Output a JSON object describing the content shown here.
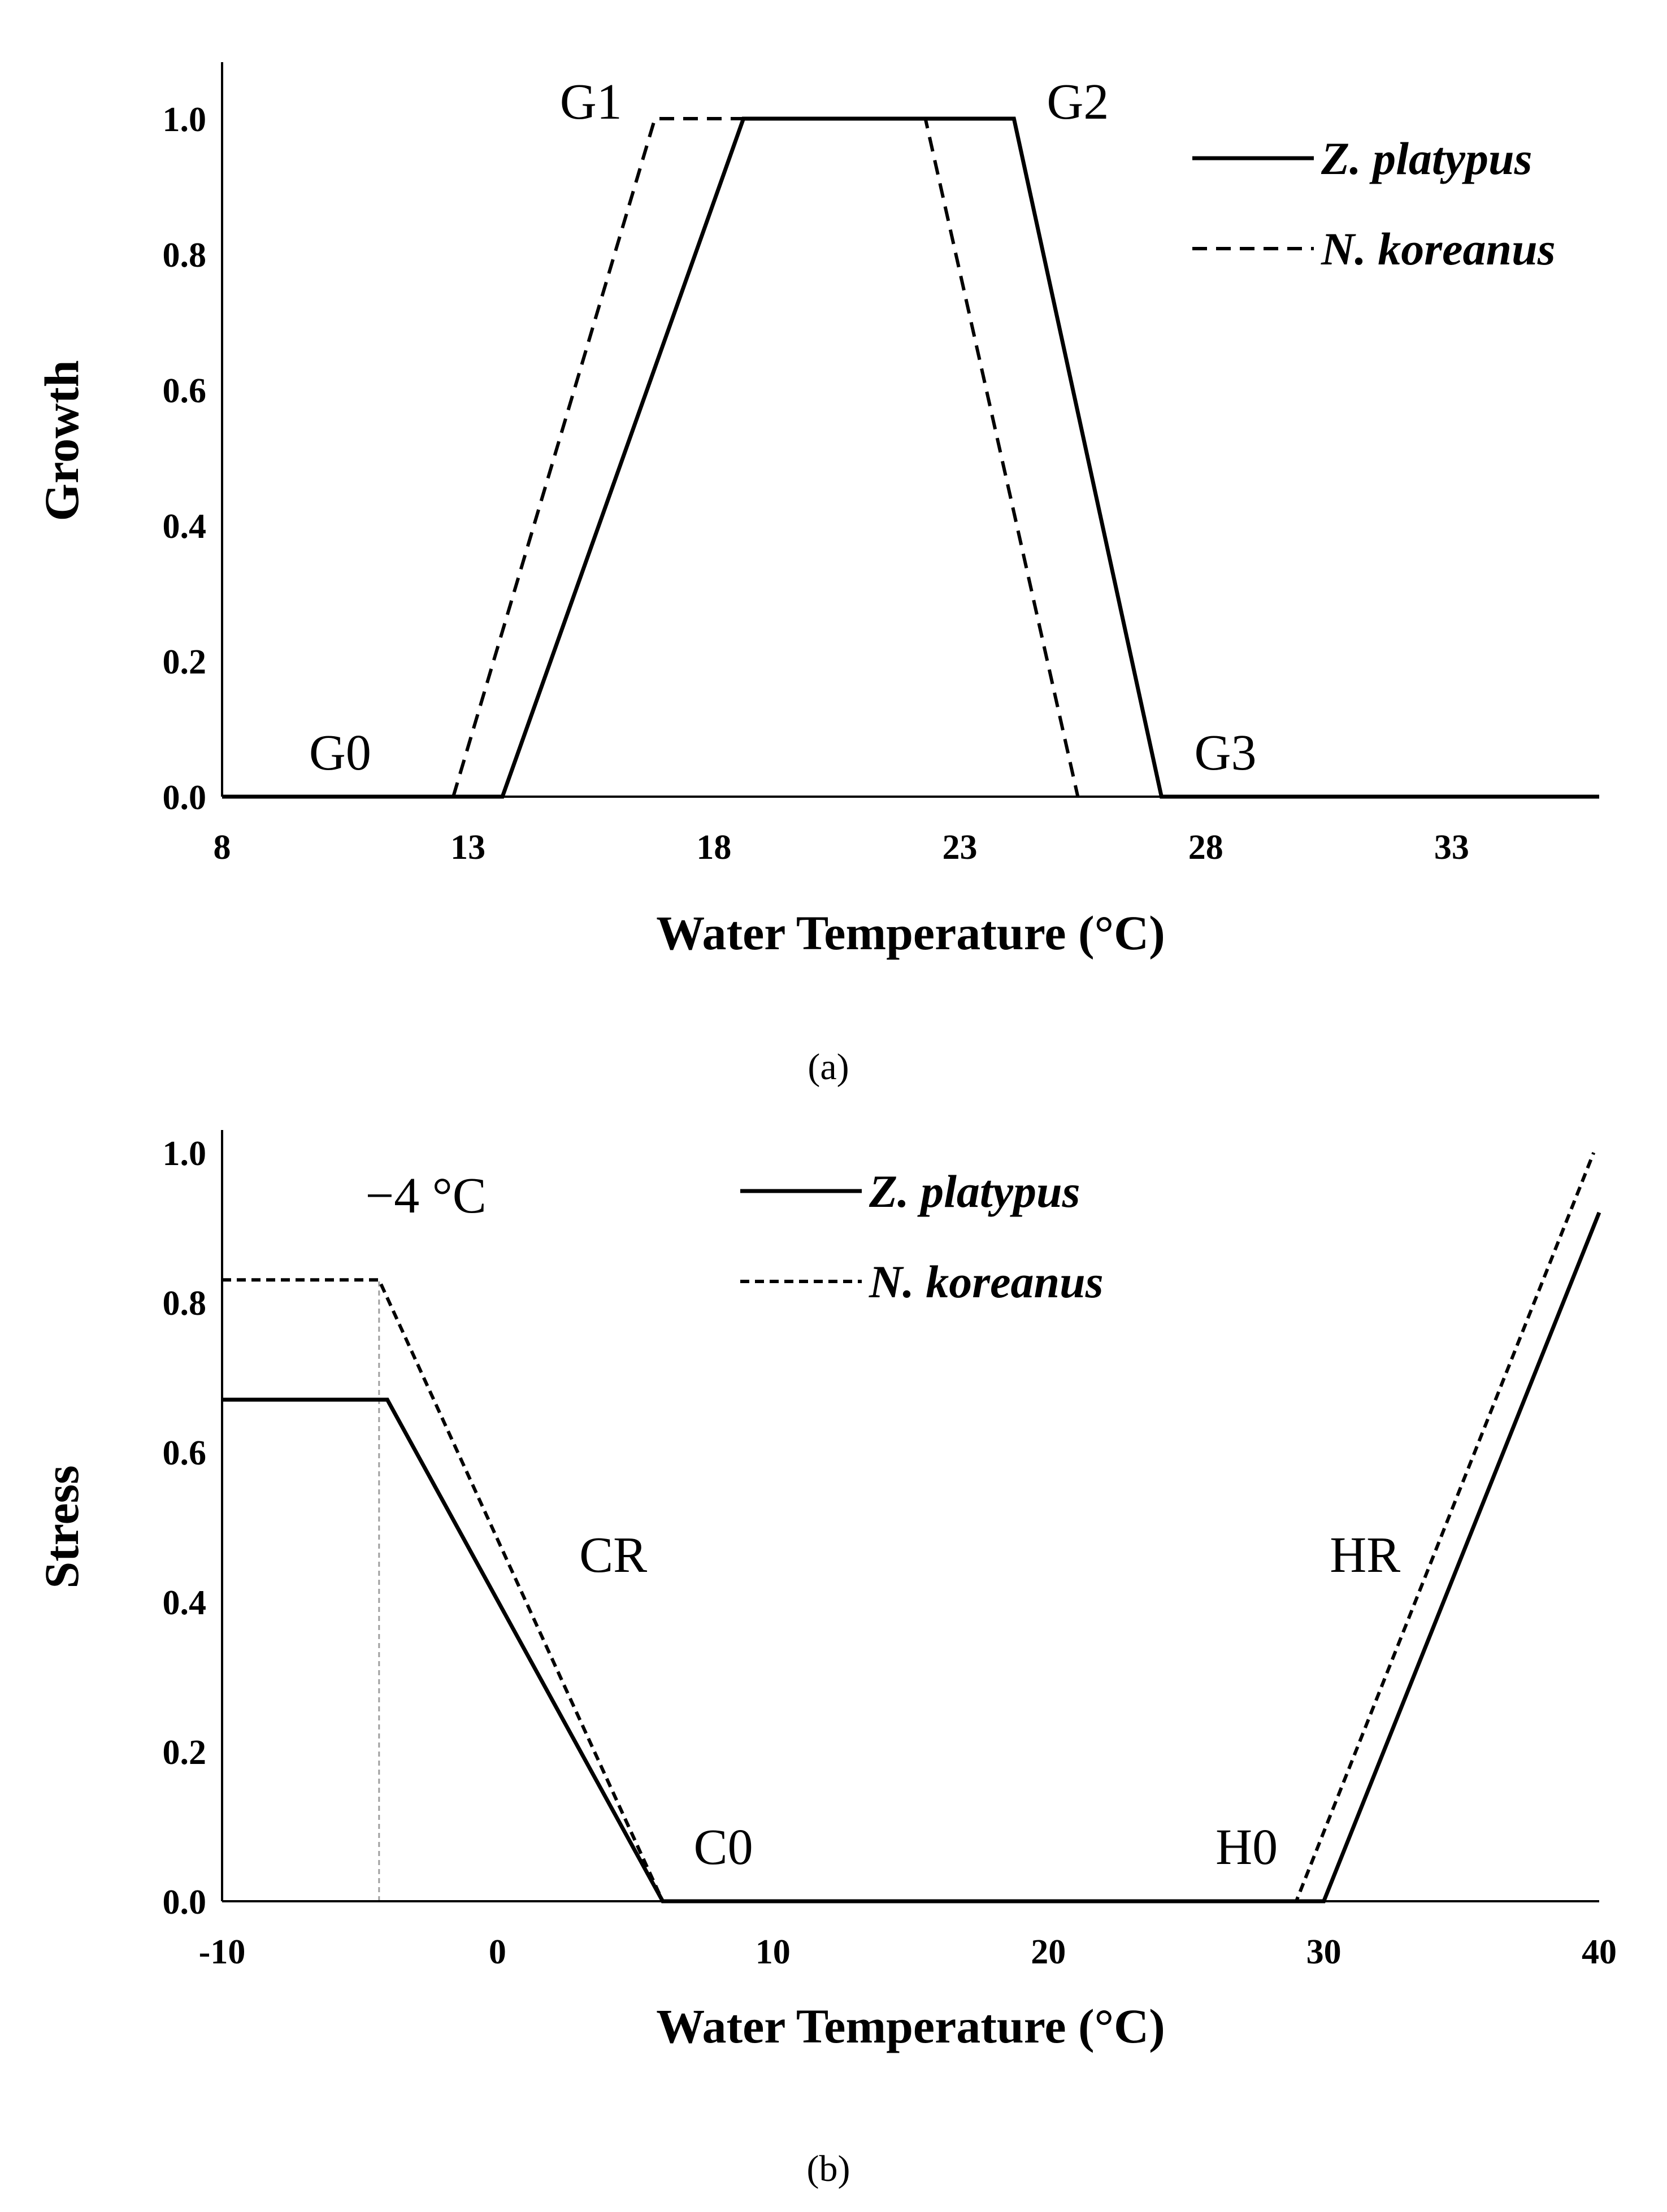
{
  "chart_data": [
    {
      "type": "line",
      "caption": "(a)",
      "xlabel": "Water Temperature (°C)",
      "ylabel": "Growth",
      "xlim": [
        8,
        36
      ],
      "ylim": [
        0,
        1.05
      ],
      "xticks": [
        8,
        13,
        18,
        23,
        28,
        33
      ],
      "yticks": [
        0.0,
        0.2,
        0.4,
        0.6,
        0.8,
        1.0
      ],
      "legend_position": "top-right",
      "series": [
        {
          "name": "Z. platypus",
          "style": "solid",
          "x": [
            8,
            13.7,
            18.6,
            24.1,
            27.1,
            36
          ],
          "y": [
            0,
            0,
            1.0,
            1.0,
            0,
            0
          ]
        },
        {
          "name": "N. koreanus",
          "style": "dashed",
          "x": [
            12.7,
            16.8,
            22.3,
            25.4
          ],
          "y": [
            0,
            1.0,
            1.0,
            0
          ]
        }
      ],
      "annotations": [
        {
          "text": "G0",
          "x": 10.4,
          "y": 0.04
        },
        {
          "text": "G1",
          "x": 15.5,
          "y": 1.0
        },
        {
          "text": "G2",
          "x": 25.4,
          "y": 1.0
        },
        {
          "text": "G3",
          "x": 28.4,
          "y": 0.04
        }
      ]
    },
    {
      "type": "line",
      "caption": "(b)",
      "xlabel": "Water Temperature (°C)",
      "ylabel": "Stress",
      "xlim": [
        -10,
        40
      ],
      "ylim": [
        0,
        1.0
      ],
      "xticks": [
        -10,
        0,
        10,
        20,
        30,
        40
      ],
      "yticks": [
        0.0,
        0.2,
        0.4,
        0.6,
        0.8,
        1.0
      ],
      "legend_position": "top-center",
      "reference_line_x": -4.3,
      "series": [
        {
          "name": "Z. platypus",
          "style": "solid",
          "x": [
            -10,
            -4,
            6,
            30,
            40
          ],
          "y": [
            0.67,
            0.67,
            0,
            0,
            0.92
          ]
        },
        {
          "name": "N. koreanus",
          "style": "dashed",
          "x": [
            -10,
            -4.3,
            6,
            29,
            39.8
          ],
          "y": [
            0.83,
            0.83,
            0,
            0,
            1.0
          ]
        }
      ],
      "annotations": [
        {
          "text": "−4 °C",
          "x": -2.6,
          "y": 0.92
        },
        {
          "text": "CR",
          "x": 4.2,
          "y": 0.44
        },
        {
          "text": "C0",
          "x": 8.2,
          "y": 0.05
        },
        {
          "text": "H0",
          "x": 27.2,
          "y": 0.05
        },
        {
          "text": "HR",
          "x": 31.5,
          "y": 0.44
        }
      ]
    }
  ]
}
